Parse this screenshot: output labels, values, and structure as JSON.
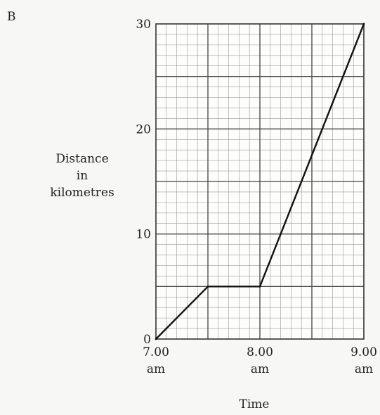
{
  "panel_label": "B",
  "chart_data": {
    "type": "line",
    "xlabel": "Time",
    "ylabel_lines": [
      "Distance",
      "in",
      "kilometres"
    ],
    "x_ticks": [
      {
        "value": 7.0,
        "lines": [
          "7.00",
          "am"
        ]
      },
      {
        "value": 8.0,
        "lines": [
          "8.00",
          "am"
        ]
      },
      {
        "value": 9.0,
        "lines": [
          "9.00",
          "am"
        ]
      }
    ],
    "y_ticks": [
      0,
      10,
      20,
      30
    ],
    "xlim": [
      7.0,
      9.0
    ],
    "ylim": [
      0,
      30
    ],
    "grid": true,
    "series": [
      {
        "x": [
          7.0,
          7.5,
          8.0,
          9.0
        ],
        "y": [
          0,
          5,
          5,
          30
        ]
      }
    ]
  }
}
